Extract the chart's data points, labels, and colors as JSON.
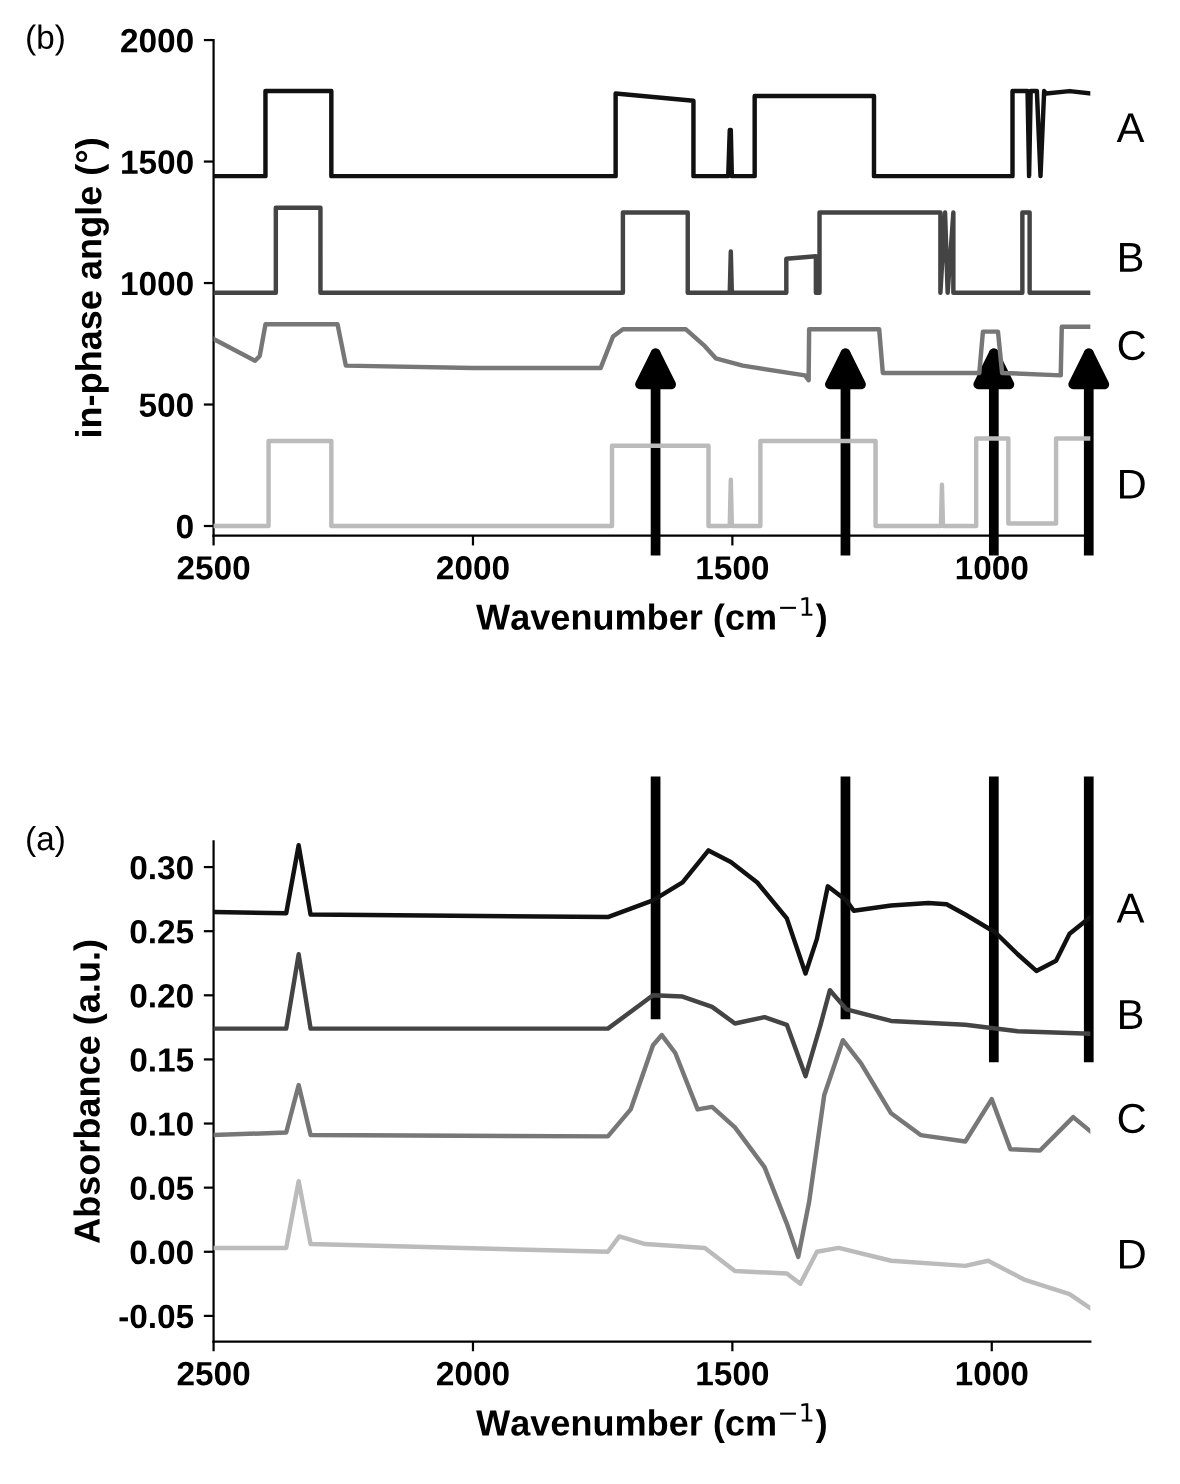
{
  "chart_data": [
    {
      "type": "line",
      "title": "(b)",
      "xlabel": "Wavenumber (cm$^{−1}$)",
      "ylabel": "in-phase angle (°)",
      "xlim": [
        2500,
        810
      ],
      "xticks": [
        2500,
        2000,
        1500,
        1000
      ],
      "ylim": [
        -40,
        2000
      ],
      "yticks": [
        0,
        500,
        1000,
        1500,
        2000
      ],
      "grid": false,
      "legend": false,
      "marker": "none",
      "line_style": "solid",
      "ref_lines": [
        {
          "axis": "x",
          "value": 1648,
          "color": "#000000"
        },
        {
          "axis": "x",
          "value": 1282,
          "color": "#000000"
        },
        {
          "axis": "x",
          "value": 996,
          "color": "#000000"
        },
        {
          "axis": "x",
          "value": 813,
          "color": "#000000"
        }
      ],
      "series": [
        {
          "name": "A",
          "color": "#111111",
          "x": [
            2500,
            2400,
            2400,
            2273,
            2273,
            1725,
            1725,
            1575,
            1575,
            1508,
            1505,
            1503,
            1501,
            1457,
            1457,
            1227,
            1227,
            960,
            960,
            931,
            928,
            925,
            913,
            906,
            899,
            895,
            850,
            810
          ],
          "values": [
            1440,
            1440,
            1790,
            1790,
            1440,
            1440,
            1780,
            1750,
            1440,
            1440,
            1630,
            1630,
            1440,
            1440,
            1770,
            1770,
            1440,
            1440,
            1790,
            1790,
            1440,
            1790,
            1790,
            1440,
            1790,
            1780,
            1790,
            1780
          ]
        },
        {
          "name": "B",
          "color": "#444444",
          "x": [
            2500,
            2380,
            2380,
            2294,
            2294,
            1711,
            1711,
            1586,
            1586,
            1505,
            1503,
            1501,
            1396,
            1396,
            1339,
            1339,
            1332,
            1332,
            1099,
            1099,
            1090,
            1085,
            1074,
            1074,
            941,
            941,
            927,
            927,
            810
          ],
          "values": [
            960,
            960,
            1310,
            1310,
            960,
            960,
            1290,
            1290,
            960,
            960,
            1130,
            960,
            960,
            1100,
            1110,
            960,
            960,
            1290,
            1290,
            960,
            1290,
            960,
            1290,
            960,
            960,
            1290,
            1290,
            960,
            960
          ]
        },
        {
          "name": "C",
          "color": "#777777",
          "x": [
            2500,
            2420,
            2411,
            2400,
            2261,
            2245,
            2000,
            1754,
            1730,
            1711,
            1590,
            1553,
            1532,
            1480,
            1360,
            1353,
            1352,
            1350,
            1217,
            1210,
            1024,
            1017,
            988,
            980,
            867,
            865,
            810
          ],
          "values": [
            770,
            680,
            700,
            830,
            830,
            660,
            650,
            650,
            780,
            810,
            810,
            740,
            690,
            660,
            620,
            600,
            810,
            810,
            810,
            630,
            630,
            800,
            800,
            630,
            620,
            820,
            820
          ]
        },
        {
          "name": "D",
          "color": "#bbbbbb",
          "x": [
            2500,
            2394,
            2394,
            2273,
            2273,
            1732,
            1732,
            1546,
            1546,
            1505,
            1503,
            1501,
            1446,
            1446,
            1224,
            1224,
            1098,
            1096,
            1094,
            1030,
            1030,
            968,
            968,
            876,
            876,
            813,
            810
          ],
          "values": [
            0,
            0,
            350,
            350,
            0,
            0,
            330,
            330,
            0,
            0,
            190,
            0,
            0,
            350,
            350,
            0,
            0,
            170,
            0,
            0,
            360,
            360,
            10,
            10,
            360,
            360,
            360
          ]
        }
      ]
    },
    {
      "type": "line",
      "title": "(a)",
      "xlabel": "Wavenumber (cm$^{−1}$)",
      "ylabel": "Absorbance (a.u.)",
      "xlim": [
        2500,
        810
      ],
      "xticks": [
        2500,
        2000,
        1500,
        1000
      ],
      "ylim": [
        -0.07,
        0.32
      ],
      "yticks": [
        {
          "value": -0.05,
          "label": "-0.05"
        },
        {
          "value": 0,
          "label": "0.00"
        },
        {
          "value": 0.05,
          "label": "0.05"
        },
        {
          "value": 0.1,
          "label": "0.10"
        },
        {
          "value": 0.15,
          "label": "0.15"
        },
        {
          "value": 0.2,
          "label": "0.20"
        },
        {
          "value": 0.25,
          "label": "0.25"
        },
        {
          "value": 0.3,
          "label": "0.30"
        }
      ],
      "grid": false,
      "legend": false,
      "marker": "none",
      "line_style": "solid",
      "ref_lines": [
        {
          "axis": "x",
          "value": 1648,
          "color": "#000000"
        },
        {
          "axis": "x",
          "value": 1282,
          "color": "#000000"
        },
        {
          "axis": "x",
          "value": 996,
          "color": "#000000"
        },
        {
          "axis": "x",
          "value": 813,
          "color": "#000000"
        }
      ],
      "series": [
        {
          "name": "A",
          "color": "#111111",
          "x": [
            2500,
            2360,
            2336,
            2313,
            1740,
            1653,
            1596,
            1546,
            1503,
            1452,
            1395,
            1359,
            1337,
            1316,
            1280,
            1266,
            1194,
            1122,
            1087,
            1051,
            993,
            950,
            914,
            876,
            850,
            810
          ],
          "values": [
            0.265,
            0.264,
            0.317,
            0.263,
            0.261,
            0.274,
            0.288,
            0.313,
            0.304,
            0.288,
            0.26,
            0.217,
            0.244,
            0.285,
            0.274,
            0.266,
            0.27,
            0.272,
            0.271,
            0.263,
            0.249,
            0.232,
            0.219,
            0.227,
            0.248,
            0.261
          ]
        },
        {
          "name": "B",
          "color": "#444444",
          "x": [
            2500,
            2360,
            2336,
            2313,
            1740,
            1653,
            1596,
            1539,
            1495,
            1438,
            1395,
            1359,
            1330,
            1312,
            1280,
            1194,
            1051,
            950,
            810
          ],
          "values": [
            0.174,
            0.174,
            0.232,
            0.174,
            0.174,
            0.2,
            0.199,
            0.191,
            0.178,
            0.183,
            0.177,
            0.137,
            0.177,
            0.204,
            0.189,
            0.18,
            0.177,
            0.172,
            0.17
          ]
        },
        {
          "name": "C",
          "color": "#777777",
          "x": [
            2500,
            2360,
            2336,
            2313,
            1740,
            1696,
            1653,
            1636,
            1610,
            1567,
            1539,
            1495,
            1438,
            1395,
            1373,
            1352,
            1323,
            1287,
            1252,
            1194,
            1137,
            1051,
            1000,
            964,
            907,
            843,
            810
          ],
          "values": [
            0.091,
            0.093,
            0.13,
            0.091,
            0.09,
            0.111,
            0.161,
            0.169,
            0.155,
            0.111,
            0.113,
            0.097,
            0.066,
            0.022,
            -0.004,
            0.039,
            0.122,
            0.165,
            0.147,
            0.108,
            0.091,
            0.086,
            0.119,
            0.08,
            0.079,
            0.105,
            0.094
          ]
        },
        {
          "name": "D",
          "color": "#bbbbbb",
          "x": [
            2500,
            2360,
            2336,
            2313,
            1740,
            1718,
            1668,
            1553,
            1495,
            1395,
            1369,
            1337,
            1295,
            1194,
            1051,
            1007,
            936,
            850,
            810
          ],
          "values": [
            0.003,
            0.003,
            0.055,
            0.006,
            0.0,
            0.012,
            0.006,
            0.003,
            -0.015,
            -0.017,
            -0.025,
            0.0,
            0.003,
            -0.007,
            -0.011,
            -0.007,
            -0.022,
            -0.033,
            -0.044
          ]
        }
      ]
    }
  ]
}
